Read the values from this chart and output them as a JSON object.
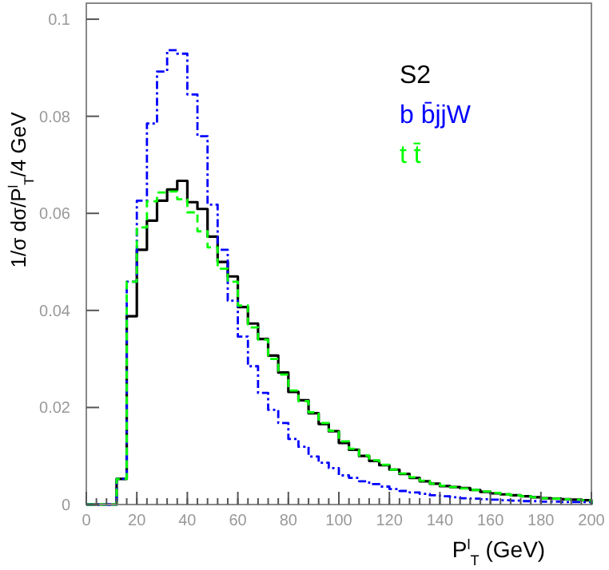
{
  "chart_data": {
    "type": "histogram",
    "xlabel": "P$^{l}$$_{T}$ (GeV)",
    "ylabel": "1/σ  dσ/P$^{l}$$_{T}$/4 GeV",
    "bins": [
      0,
      4,
      8,
      12,
      16,
      20,
      24,
      28,
      32,
      36,
      40,
      44,
      48,
      52,
      56,
      60,
      64,
      68,
      72,
      76,
      80,
      84,
      88,
      92,
      96,
      100,
      104,
      108,
      112,
      116,
      120,
      124,
      128,
      132,
      136,
      140,
      144,
      148,
      152,
      156,
      160,
      164,
      168,
      172,
      176,
      180,
      184,
      188,
      192,
      196,
      200
    ],
    "series": [
      {
        "name": "S2",
        "color": "#000000",
        "line_style": "solid",
        "values": [
          0,
          0,
          0,
          0.0053,
          0.0388,
          0.0525,
          0.0585,
          0.0626,
          0.0649,
          0.0667,
          0.0623,
          0.0609,
          0.0552,
          0.05,
          0.047,
          0.0407,
          0.0373,
          0.0341,
          0.0307,
          0.0272,
          0.0232,
          0.0215,
          0.0188,
          0.0166,
          0.0151,
          0.0127,
          0.0113,
          0.01,
          0.009,
          0.0081,
          0.0072,
          0.0063,
          0.0055,
          0.0048,
          0.0043,
          0.0038,
          0.0036,
          0.0034,
          0.003,
          0.0026,
          0.0023,
          0.0021,
          0.0019,
          0.0017,
          0.0015,
          0.0013,
          0.0012,
          0.0011,
          0.001,
          0.0009
        ]
      },
      {
        "name": "b b̄jjW",
        "color": "#0000ff",
        "line_style": "dashdot",
        "values": [
          0,
          0,
          0,
          0.0053,
          0.0459,
          0.0626,
          0.0785,
          0.0892,
          0.0936,
          0.0929,
          0.0845,
          0.0759,
          0.0618,
          0.0525,
          0.042,
          0.0346,
          0.0285,
          0.023,
          0.0195,
          0.0168,
          0.0135,
          0.0119,
          0.0099,
          0.0086,
          0.0075,
          0.006,
          0.0055,
          0.0048,
          0.0042,
          0.0037,
          0.0032,
          0.0028,
          0.0025,
          0.0022,
          0.0019,
          0.0017,
          0.0015,
          0.0013,
          0.0012,
          0.0011,
          0.001,
          0.0009,
          0.0008,
          0.0007,
          0.0007,
          0.0006,
          0.0006,
          0.0005,
          0.0005,
          0.0005
        ]
      },
      {
        "name": "t t̄",
        "color": "#00ff00",
        "line_style": "dashed",
        "values": [
          0,
          0,
          0,
          0.0053,
          0.0459,
          0.0571,
          0.0625,
          0.0643,
          0.0645,
          0.0629,
          0.0602,
          0.0563,
          0.053,
          0.0486,
          0.0459,
          0.041,
          0.0365,
          0.034,
          0.03,
          0.0268,
          0.0235,
          0.0213,
          0.019,
          0.0168,
          0.0152,
          0.013,
          0.0115,
          0.0101,
          0.0091,
          0.0082,
          0.0072,
          0.0064,
          0.0056,
          0.0049,
          0.0043,
          0.0039,
          0.0036,
          0.0033,
          0.003,
          0.0027,
          0.0024,
          0.0021,
          0.0019,
          0.0017,
          0.0015,
          0.0013,
          0.0012,
          0.0011,
          0.001,
          0.0009
        ]
      }
    ],
    "xlim": [
      0,
      200
    ],
    "xticks": [
      0,
      20,
      40,
      60,
      80,
      100,
      120,
      140,
      160,
      180,
      200
    ],
    "ylim": [
      0,
      0.1033
    ],
    "yticks": [
      0,
      0.02,
      0.04,
      0.06,
      0.08,
      0.1
    ],
    "legend": "top right",
    "grid": false
  }
}
